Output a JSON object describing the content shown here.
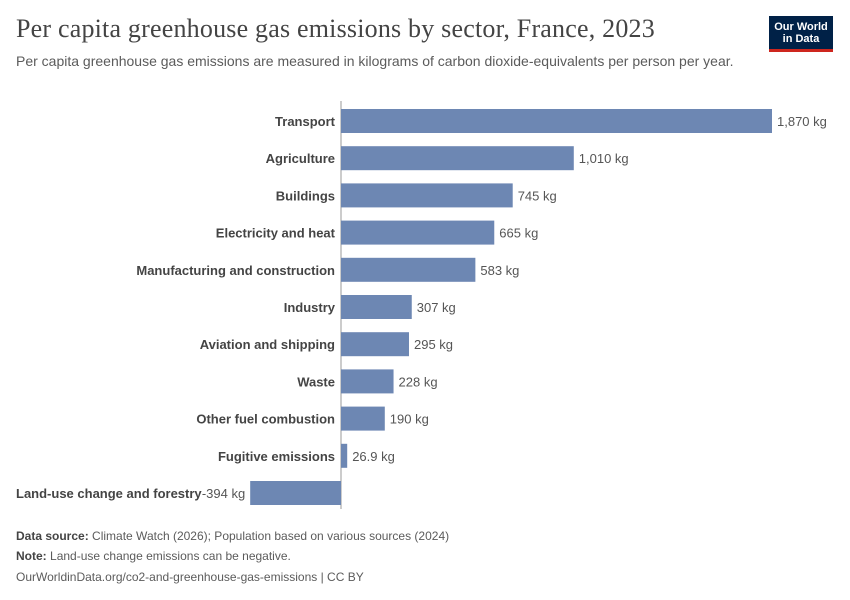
{
  "header": {
    "title": "Per capita greenhouse gas emissions by sector, France, 2023",
    "subtitle": "Per capita greenhouse gas emissions are measured in kilograms of carbon dioxide-equivalents per person per year."
  },
  "logo": {
    "line1": "Our World",
    "line2": "in Data"
  },
  "colors": {
    "bar": "#6d87b3",
    "axis": "#999999",
    "label": "#444444",
    "value": "#555555"
  },
  "chart_data": {
    "type": "bar",
    "orientation": "horizontal",
    "unit": "kg",
    "categories": [
      "Transport",
      "Agriculture",
      "Buildings",
      "Electricity and heat",
      "Manufacturing and construction",
      "Industry",
      "Aviation and shipping",
      "Waste",
      "Other fuel combustion",
      "Fugitive emissions",
      "Land-use change and forestry"
    ],
    "values": [
      1870,
      1010,
      745,
      665,
      583,
      307,
      295,
      228,
      190,
      26.9,
      -394
    ],
    "value_labels": [
      "1,870 kg",
      "1,010 kg",
      "745 kg",
      "665 kg",
      "583 kg",
      "307 kg",
      "295 kg",
      "228 kg",
      "190 kg",
      "26.9 kg",
      "-394 kg"
    ]
  },
  "footer": {
    "source_label": "Data source:",
    "source_text": "Climate Watch (2026); Population based on various sources (2024)",
    "note_label": "Note:",
    "note_text": "Land-use change emissions can be negative.",
    "url": "OurWorldinData.org/co2-and-greenhouse-gas-emissions | CC BY"
  }
}
